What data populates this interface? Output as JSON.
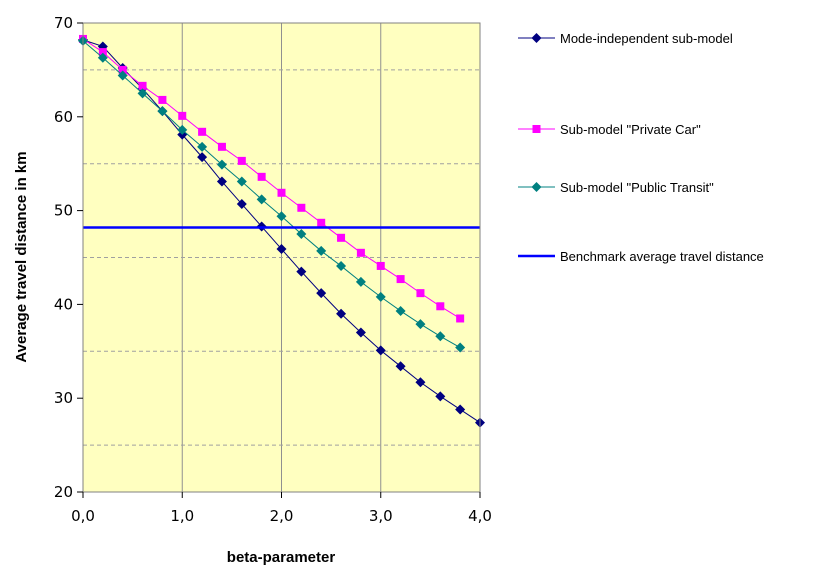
{
  "chart_data": {
    "type": "line",
    "xlabel": "beta-parameter",
    "ylabel": "Average travel distance in km",
    "xlim": [
      0,
      4
    ],
    "ylim": [
      20,
      70
    ],
    "x_ticks": [
      "0,0",
      "1,0",
      "2,0",
      "3,0",
      "4,0"
    ],
    "y_ticks": [
      "20",
      "30",
      "40",
      "50",
      "60",
      "70"
    ],
    "grid": "vertical solid at major x ticks; horizontal dashed at y = 25, 35, 45, 55, 65",
    "plot_background": "#ffffc0",
    "legend_placement": "right",
    "series": [
      {
        "name": "Mode-independent sub-model",
        "color": "#000080",
        "marker": "diamond",
        "x": [
          0.0,
          0.2,
          0.4,
          0.6,
          0.8,
          1.0,
          1.2,
          1.4,
          1.6,
          1.8,
          2.0,
          2.2,
          2.4,
          2.6,
          2.8,
          3.0,
          3.2,
          3.4,
          3.6,
          3.8,
          4.0
        ],
        "values": [
          68.2,
          67.5,
          65.2,
          63.0,
          60.6,
          58.1,
          55.7,
          53.1,
          50.7,
          48.3,
          45.9,
          43.5,
          41.2,
          39.0,
          37.0,
          35.1,
          33.4,
          31.7,
          30.2,
          28.8,
          27.4
        ]
      },
      {
        "name": "Sub-model \"Private Car\"",
        "color": "#ff00ff",
        "marker": "square",
        "x": [
          0.0,
          0.2,
          0.4,
          0.6,
          0.8,
          1.0,
          1.2,
          1.4,
          1.6,
          1.8,
          2.0,
          2.2,
          2.4,
          2.6,
          2.8,
          3.0,
          3.2,
          3.4,
          3.6,
          3.8
        ],
        "values": [
          68.3,
          66.9,
          65.0,
          63.3,
          61.8,
          60.1,
          58.4,
          56.8,
          55.3,
          53.6,
          51.9,
          50.3,
          48.7,
          47.1,
          45.5,
          44.1,
          42.7,
          41.2,
          39.8,
          38.5
        ]
      },
      {
        "name": "Sub-model \"Public Transit\"",
        "color": "#008080",
        "marker": "diamond",
        "x": [
          0.0,
          0.2,
          0.4,
          0.6,
          0.8,
          1.0,
          1.2,
          1.4,
          1.6,
          1.8,
          2.0,
          2.2,
          2.4,
          2.6,
          2.8,
          3.0,
          3.2,
          3.4,
          3.6,
          3.8
        ],
        "values": [
          68.1,
          66.3,
          64.4,
          62.5,
          60.6,
          58.6,
          56.8,
          54.9,
          53.1,
          51.2,
          49.4,
          47.5,
          45.7,
          44.1,
          42.4,
          40.8,
          39.3,
          37.9,
          36.6,
          35.4
        ]
      },
      {
        "name": "Benchmark average travel distance",
        "color": "#0000ff",
        "marker": "none",
        "kind": "horizontal",
        "value": 48.2
      }
    ]
  }
}
